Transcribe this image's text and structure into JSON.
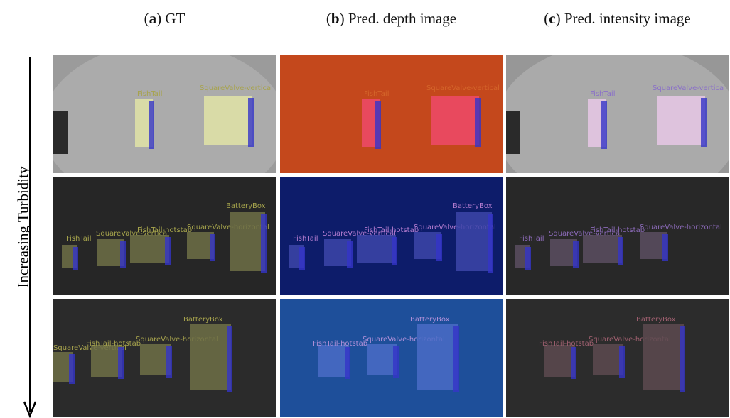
{
  "columns": [
    {
      "heading": [
        "(",
        "a",
        ") GT"
      ]
    },
    {
      "heading": [
        "(",
        "b",
        ") Pred. depth image"
      ]
    },
    {
      "heading": [
        "(",
        "c",
        ") Pred. intensity image"
      ]
    }
  ],
  "side_label": "Increasing Turbidity",
  "panels": [
    [
      {
        "labels": [
          "FishTail",
          "SquareValve-vertical"
        ]
      },
      {
        "labels": [
          "FishTail",
          "SquareValve-vertical"
        ]
      },
      {
        "labels": [
          "FishTail",
          "SquareValve-vertica"
        ]
      }
    ],
    [
      {
        "labels": [
          "FishTail",
          "SquareValve-vertical",
          "FishTail-hotstab",
          "SquareValve-horizontal",
          "BatteryBox"
        ]
      },
      {
        "labels": [
          "FishTail",
          "SquareValve-vertical",
          "FishTail-hotstab",
          "SquareValve-horizontal",
          "BatteryBox"
        ]
      },
      {
        "labels": [
          "FishTail",
          "SquareValve-vertical",
          "FishTail-hotstab",
          "SquareValve-horizontal"
        ]
      }
    ],
    [
      {
        "labels": [
          "SquareValve-vertical",
          "FishTail-hotstab",
          "SquareValve-horizontal",
          "BatteryBox"
        ]
      },
      {
        "labels": [
          "FishTail-hotstab",
          "SquareValve-horizontal",
          "BatteryBox"
        ]
      },
      {
        "labels": [
          "FishTail-hotstab",
          "SquareValve-horizontal",
          "BatteryBox"
        ]
      }
    ]
  ]
}
